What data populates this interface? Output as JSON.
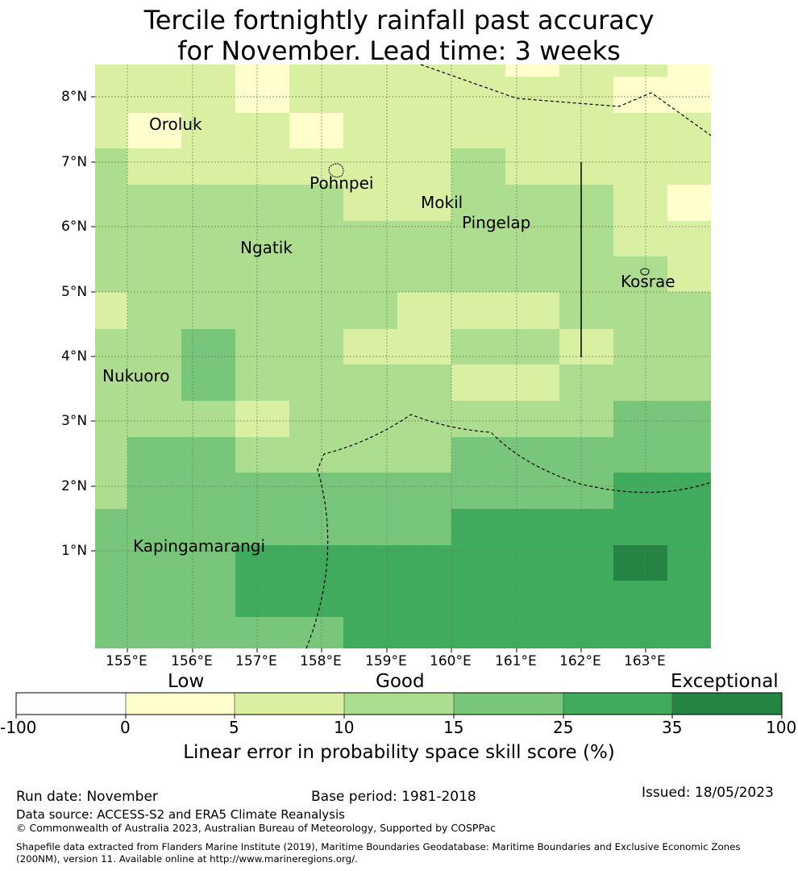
{
  "title": {
    "line1": "Tercile fortnightly rainfall past accuracy",
    "line2": "for November. Lead time: 3 weeks"
  },
  "map": {
    "lat_ticks": [
      "8°N",
      "7°N",
      "6°N",
      "5°N",
      "4°N",
      "3°N",
      "2°N",
      "1°N"
    ],
    "lon_ticks": [
      "155°E",
      "156°E",
      "157°E",
      "158°E",
      "159°E",
      "160°E",
      "161°E",
      "162°E",
      "163°E"
    ],
    "places": [
      "Oroluk",
      "Pohnpei",
      "Mokil",
      "Pingelap",
      "Ngatik",
      "Kosrae",
      "Nukuoro",
      "Kapingamarangi"
    ]
  },
  "legend": {
    "categories": [
      "Low",
      "Good",
      "Exceptional"
    ],
    "tick_labels": [
      "-100",
      "0",
      "5",
      "10",
      "15",
      "25",
      "35",
      "100"
    ],
    "colors": [
      "#ffffff",
      "#ffffcc",
      "#d9f0a3",
      "#addd8e",
      "#78c679",
      "#41ab5d",
      "#238443"
    ],
    "axis_label": "Linear error in probability space skill score (%)"
  },
  "footer": {
    "run_date": "Run date: November",
    "base_period": "Base period: 1981-2018",
    "issued": "Issued: 18/05/2023",
    "data_source": "Data source: ACCESS-S2 and ERA5 Climate Reanalysis",
    "copyright": "© Commonwealth of Australia 2023, Australian Bureau of Meteorology, Supported by COSPPac",
    "shapefile_line1": "Shapefile data extracted from Flanders Marine Institute (2019), Maritime Boundaries Geodatabase: Maritime Boundaries and Exclusive Economic Zones",
    "shapefile_line2": "(200NM), version 11. Available online at http://www.marineregions.org/."
  }
}
